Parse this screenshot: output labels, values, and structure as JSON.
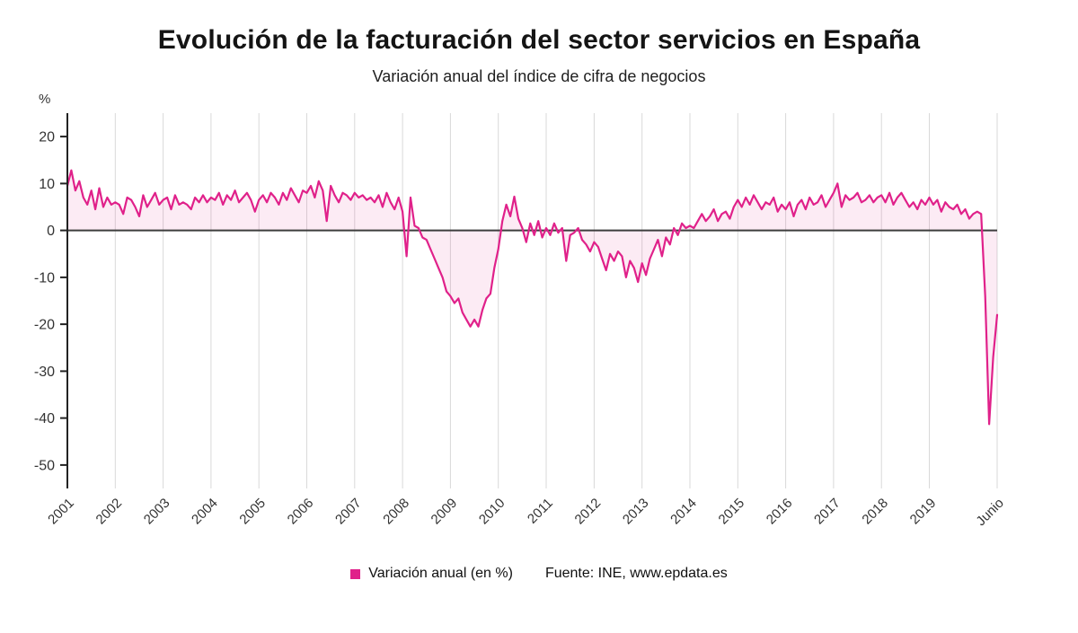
{
  "page": {
    "title": "Evolución de la facturación del sector servicios en España",
    "subtitle": "Variación anual del índice de cifra de negocios"
  },
  "legend": {
    "series_label": "Variación anual (en %)",
    "source": "Fuente: INE, www.epdata.es"
  },
  "chart_data": {
    "type": "line",
    "title": "Evolución de la facturación del sector servicios en España",
    "subtitle": "Variación anual del índice de cifra de negocios",
    "ylabel": "%",
    "ylim": [
      -55,
      25
    ],
    "yticks": [
      20,
      10,
      0,
      -10,
      -20,
      -30,
      -40,
      -50
    ],
    "x_start": "2001-01",
    "x_freq": "monthly",
    "x_tick_labels": [
      "2001",
      "2002",
      "2003",
      "2004",
      "2005",
      "2006",
      "2007",
      "2008",
      "2009",
      "2010",
      "2011",
      "2012",
      "2013",
      "2014",
      "2015",
      "2016",
      "2017",
      "2018",
      "2019",
      "Junio"
    ],
    "grid": "vertical-only",
    "legend_position": "bottom",
    "source": "Fuente: INE, www.epdata.es",
    "colors": {
      "line": "#e0218a",
      "area_fill": "#e0218a",
      "area_opacity": 0.09,
      "zero_line": "#3d3d3d",
      "grid": "#d9d9d9",
      "axis": "#222222",
      "tick_text": "#333333"
    },
    "series": [
      {
        "name": "Variación anual (en %)",
        "values": [
          9.5,
          12.8,
          8.5,
          10.5,
          7,
          5.5,
          8.5,
          4.5,
          9,
          5,
          7,
          5.5,
          6,
          5.5,
          3.5,
          7,
          6.5,
          5,
          3,
          7.5,
          5,
          6.5,
          8,
          5.5,
          6.5,
          7,
          4.5,
          7.5,
          5.5,
          6,
          5.5,
          4.5,
          7,
          6,
          7.5,
          6,
          7,
          6.5,
          8,
          5.5,
          7.5,
          6.5,
          8.5,
          6,
          7,
          8,
          6.5,
          4,
          6.5,
          7.5,
          6,
          8,
          7,
          5.5,
          8,
          6.5,
          9,
          7.5,
          6,
          8.5,
          8,
          9.5,
          7,
          10.5,
          8.5,
          2,
          9.5,
          7.5,
          6,
          8,
          7.5,
          6.5,
          8,
          7,
          7.5,
          6.5,
          7,
          6,
          7.5,
          5,
          8,
          6,
          4.5,
          7,
          4,
          -5.5,
          7,
          1,
          0.5,
          -1.5,
          -2,
          -4,
          -6,
          -8,
          -10,
          -13,
          -14,
          -15.5,
          -14.5,
          -17.5,
          -19,
          -20.5,
          -19,
          -20.5,
          -17,
          -14.5,
          -13.5,
          -8,
          -4,
          2,
          5.5,
          3,
          7.2,
          2.5,
          0.5,
          -2.5,
          1.5,
          -1,
          2,
          -1.5,
          0.5,
          -1,
          1.5,
          -0.5,
          0.5,
          -6.5,
          -1,
          -0.5,
          0.5,
          -2,
          -3,
          -4.5,
          -2.5,
          -3.5,
          -6,
          -8.5,
          -5,
          -6.5,
          -4.5,
          -5.5,
          -10,
          -6.5,
          -8,
          -11,
          -7,
          -9.5,
          -6,
          -4,
          -2,
          -5.5,
          -1.5,
          -3,
          0.5,
          -1,
          1.5,
          0.5,
          1,
          0.5,
          2,
          3.5,
          2,
          3,
          4.5,
          2,
          3.5,
          4,
          2.5,
          5,
          6.5,
          5,
          7,
          5.5,
          7.5,
          6,
          4.5,
          6,
          5.5,
          7,
          4,
          5.5,
          4.5,
          6,
          3,
          5.5,
          6.5,
          4.5,
          7,
          5.5,
          6,
          7.5,
          5,
          6.5,
          8,
          10,
          5,
          7.5,
          6.5,
          7,
          8,
          6,
          6.5,
          7.5,
          6,
          7,
          7.5,
          6,
          8,
          5.5,
          7,
          8,
          6.5,
          5,
          6,
          4.5,
          6.5,
          5.5,
          7,
          5.5,
          6.5,
          4,
          6,
          5,
          4.5,
          5.5,
          3.5,
          4.5,
          2.5,
          3.5,
          4,
          3.5,
          -14,
          -41.3,
          -27,
          -18
        ]
      }
    ]
  }
}
